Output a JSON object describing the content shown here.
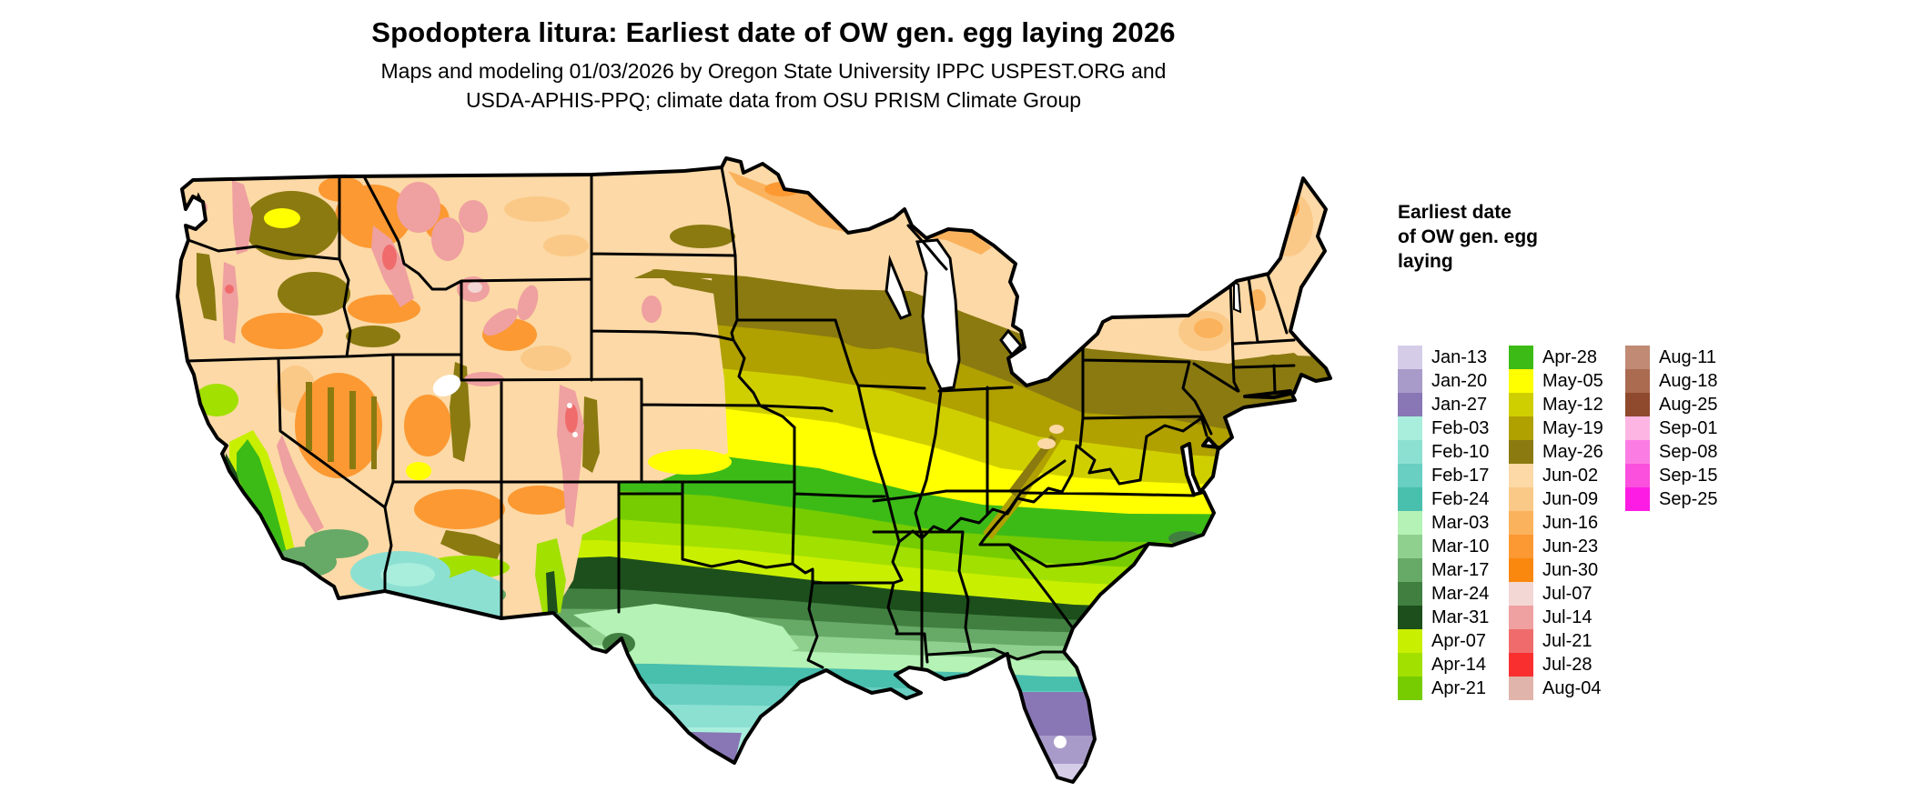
{
  "title": "Spodoptera litura: Earliest date of OW gen. egg laying 2026",
  "subtitle": {
    "line1": "Maps and modeling 01/03/2026 by Oregon State University IPPC USPEST.ORG and",
    "line2": "USDA-APHIS-PPQ; climate data from OSU PRISM Climate Group"
  },
  "legend": {
    "title": "Earliest date\nof OW gen. egg\nlaying",
    "columns": [
      [
        {
          "label": "Jan-13",
          "color": "#d5cde8"
        },
        {
          "label": "Jan-20",
          "color": "#a99bc9"
        },
        {
          "label": "Jan-27",
          "color": "#8877b4"
        },
        {
          "label": "Feb-03",
          "color": "#a9eedd"
        },
        {
          "label": "Feb-10",
          "color": "#8ce0d2"
        },
        {
          "label": "Feb-17",
          "color": "#68cfc2"
        },
        {
          "label": "Feb-24",
          "color": "#49bfae"
        },
        {
          "label": "Mar-03",
          "color": "#b5f2b5"
        },
        {
          "label": "Mar-10",
          "color": "#8fd08f"
        },
        {
          "label": "Mar-17",
          "color": "#67a967"
        },
        {
          "label": "Mar-24",
          "color": "#417f41"
        },
        {
          "label": "Mar-31",
          "color": "#1c4f1c"
        },
        {
          "label": "Apr-07",
          "color": "#c9ef00"
        },
        {
          "label": "Apr-14",
          "color": "#a2e000"
        },
        {
          "label": "Apr-21",
          "color": "#76cc00"
        }
      ],
      [
        {
          "label": "Apr-28",
          "color": "#3cbb17"
        },
        {
          "label": "May-05",
          "color": "#ffff00"
        },
        {
          "label": "May-12",
          "color": "#cfcf00"
        },
        {
          "label": "May-19",
          "color": "#b0a000"
        },
        {
          "label": "May-26",
          "color": "#8a7a10"
        },
        {
          "label": "Jun-02",
          "color": "#fcd9a6"
        },
        {
          "label": "Jun-09",
          "color": "#fbc987"
        },
        {
          "label": "Jun-16",
          "color": "#fbb25c"
        },
        {
          "label": "Jun-23",
          "color": "#fc9932"
        },
        {
          "label": "Jun-30",
          "color": "#fa870e"
        },
        {
          "label": "Jul-07",
          "color": "#f2d7d4"
        },
        {
          "label": "Jul-14",
          "color": "#efa0a0"
        },
        {
          "label": "Jul-21",
          "color": "#f06c6c"
        },
        {
          "label": "Jul-28",
          "color": "#f92f2f"
        },
        {
          "label": "Aug-04",
          "color": "#e0b4aa"
        }
      ],
      [
        {
          "label": "Aug-11",
          "color": "#c08a74"
        },
        {
          "label": "Aug-18",
          "color": "#aa6b51"
        },
        {
          "label": "Aug-25",
          "color": "#8f4a2e"
        },
        {
          "label": "Sep-01",
          "color": "#fdb6e3"
        },
        {
          "label": "Sep-08",
          "color": "#fb7de3"
        },
        {
          "label": "Sep-15",
          "color": "#fb50dd"
        },
        {
          "label": "Sep-25",
          "color": "#fd1ce3"
        }
      ]
    ]
  },
  "map": {
    "description": "Contiguous United States choropleth of earliest overwintering-generation egg-laying date",
    "water_color": "#ffffff",
    "border_color": "#000000"
  }
}
